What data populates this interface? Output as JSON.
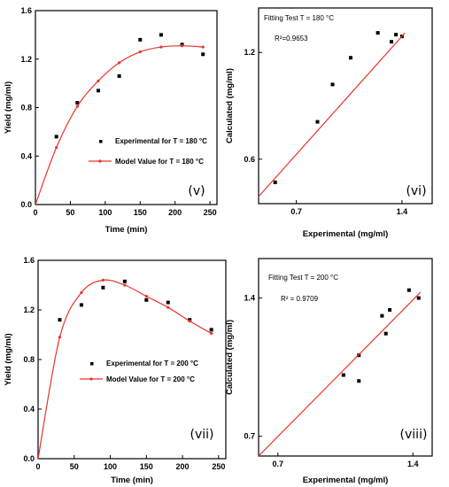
{
  "chart_data": [
    {
      "type": "scatter",
      "panel_label": "(v)",
      "xlabel": "Time (min)",
      "ylabel": "Yield (mg/ml)",
      "xlim": [
        0,
        260
      ],
      "ylim": [
        0.0,
        1.6
      ],
      "xticks": [
        "0",
        "50",
        "100",
        "150",
        "200",
        "250"
      ],
      "yticks": [
        "0.0",
        "0.4",
        "0.8",
        "1.2",
        "1.6"
      ],
      "legend_position": "lower-left-center",
      "series": [
        {
          "name": "Experimental for T = 180 °C",
          "marker": "square",
          "color": "#000000",
          "x": [
            30,
            60,
            90,
            120,
            150,
            180,
            210,
            240
          ],
          "y": [
            0.56,
            0.84,
            0.94,
            1.06,
            1.36,
            1.4,
            1.32,
            1.24
          ]
        },
        {
          "name": "Model Value for T = 180 °C",
          "marker": "dot-line",
          "color": "#e8342c",
          "x": [
            0,
            30,
            60,
            90,
            120,
            150,
            180,
            210,
            240
          ],
          "y": [
            0.0,
            0.47,
            0.81,
            1.02,
            1.17,
            1.26,
            1.3,
            1.31,
            1.3
          ]
        }
      ]
    },
    {
      "type": "scatter",
      "panel_label": "(vi)",
      "annotation_title": "Fitting Test T = 180 °C",
      "annotation_r2": "R²=0.9653",
      "xlabel": "Experimental (mg/ml)",
      "ylabel": "Calculated (mg/ml)",
      "xlim": [
        0.45,
        1.6
      ],
      "ylim": [
        0.35,
        1.45
      ],
      "xticks": [
        "0.7",
        "1.4"
      ],
      "yticks": [
        "0.6",
        "1.2"
      ],
      "series": [
        {
          "name": "data",
          "marker": "square",
          "color": "#000000",
          "x": [
            0.56,
            0.84,
            0.94,
            1.06,
            1.36,
            1.4,
            1.33,
            1.24
          ],
          "y": [
            0.47,
            0.81,
            1.02,
            1.17,
            1.3,
            1.29,
            1.26,
            1.31
          ]
        },
        {
          "name": "fit",
          "type": "line",
          "color": "#e8342c",
          "x": [
            0.45,
            1.42
          ],
          "y": [
            0.39,
            1.31
          ]
        }
      ]
    },
    {
      "type": "scatter",
      "panel_label": "(vii)",
      "xlabel": "Time (min)",
      "ylabel": "Yield (mg/ml)",
      "xlim": [
        0,
        260
      ],
      "ylim": [
        0.0,
        1.6
      ],
      "xticks": [
        "0",
        "50",
        "100",
        "150",
        "200",
        "250"
      ],
      "yticks": [
        "0.0",
        "0.4",
        "0.8",
        "1.2",
        "1.6"
      ],
      "legend_position": "lower-center",
      "series": [
        {
          "name": "Experimental for T = 200 °C",
          "marker": "square",
          "color": "#000000",
          "x": [
            30,
            60,
            90,
            120,
            150,
            180,
            210,
            240
          ],
          "y": [
            1.12,
            1.24,
            1.38,
            1.43,
            1.28,
            1.26,
            1.12,
            1.04
          ]
        },
        {
          "name": "Model Value for T = 200 °C",
          "marker": "dot-line",
          "color": "#e8342c",
          "x": [
            0,
            30,
            60,
            90,
            120,
            150,
            180,
            210,
            240
          ],
          "y": [
            0.0,
            0.98,
            1.34,
            1.44,
            1.4,
            1.31,
            1.22,
            1.11,
            1.01
          ]
        }
      ]
    },
    {
      "type": "scatter",
      "panel_label": "(viii)",
      "annotation_title": "Fitting Test T = 200 °C",
      "annotation_r2": "R² = 0.9709",
      "xlabel": "Experimental (mg/ml)",
      "ylabel": "Calculated (mg/ml)",
      "xlim": [
        0.6,
        1.5
      ],
      "ylim": [
        0.6,
        1.6
      ],
      "xticks": [
        "0.7",
        "1.4"
      ],
      "yticks": [
        "0.7",
        "1.4"
      ],
      "series": [
        {
          "name": "data",
          "marker": "square",
          "color": "#000000",
          "x": [
            1.04,
            1.12,
            1.12,
            1.24,
            1.26,
            1.28,
            1.38,
            1.43
          ],
          "y": [
            1.01,
            1.11,
            0.98,
            1.31,
            1.22,
            1.34,
            1.44,
            1.4
          ]
        },
        {
          "name": "fit",
          "type": "line",
          "color": "#e8342c",
          "x": [
            0.6,
            1.44
          ],
          "y": [
            0.6,
            1.43
          ]
        }
      ]
    }
  ]
}
